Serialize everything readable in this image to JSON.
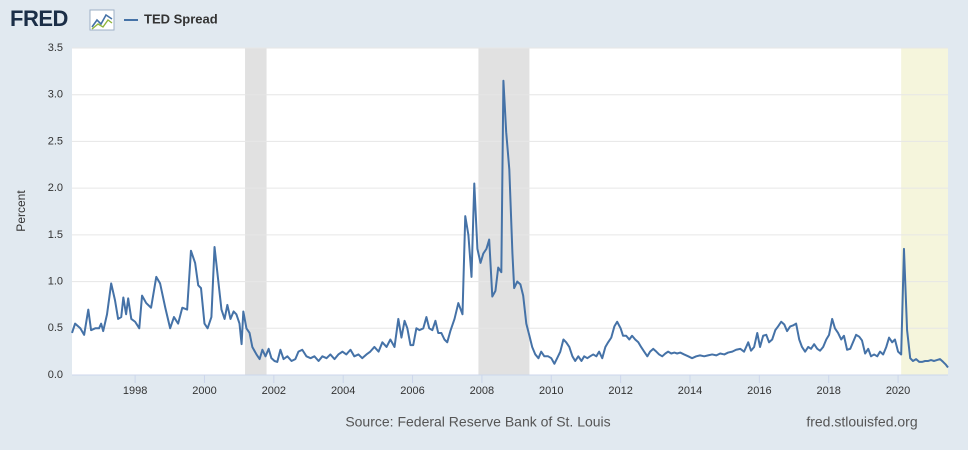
{
  "logo": "FRED",
  "chart_data": {
    "type": "line",
    "y_label": "Percent",
    "source": "Source: Federal Reserve Bank of St. Louis",
    "site": "fred.stlouisfed.org",
    "xlim": [
      1996.18,
      2021.44
    ],
    "xticks": [
      1998,
      2000,
      2002,
      2004,
      2006,
      2008,
      2010,
      2012,
      2014,
      2016,
      2018,
      2020
    ],
    "ylim": [
      0,
      3.5
    ],
    "yticks": [
      {
        "value": 0,
        "label": "0.0"
      },
      0.5,
      {
        "value": 1,
        "label": "1.0"
      },
      1.5,
      {
        "value": 2,
        "label": "2.0"
      },
      2.5,
      {
        "value": 3,
        "label": "3.0"
      },
      3.5
    ],
    "grid": true,
    "legend": "top-left",
    "shaded_regions": [
      {
        "start": 2001.17,
        "end": 2001.79,
        "color": "#e1e1e1"
      },
      {
        "start": 2007.9,
        "end": 2009.37,
        "color": "#e1e1e1"
      },
      {
        "start": 2020.09,
        "end": 2021.44,
        "color": "#f5f5dc"
      }
    ],
    "x": [
      1996.18,
      1996.27,
      1996.42,
      1996.53,
      1996.65,
      1996.73,
      1996.85,
      1996.96,
      1997.02,
      1997.08,
      1997.19,
      1997.31,
      1997.42,
      1997.51,
      1997.6,
      1997.66,
      1997.74,
      1997.8,
      1997.89,
      1998.0,
      1998.12,
      1998.2,
      1998.32,
      1998.46,
      1998.61,
      1998.72,
      1998.87,
      1999.01,
      1999.12,
      1999.24,
      1999.36,
      1999.5,
      1999.61,
      1999.73,
      1999.82,
      1999.9,
      2000.0,
      2000.09,
      2000.2,
      2000.29,
      2000.4,
      2000.49,
      2000.58,
      2000.66,
      2000.75,
      2000.84,
      2000.92,
      2001.01,
      2001.07,
      2001.12,
      2001.21,
      2001.3,
      2001.38,
      2001.5,
      2001.59,
      2001.67,
      2001.76,
      2001.85,
      2001.93,
      2002.02,
      2002.1,
      2002.19,
      2002.28,
      2002.39,
      2002.51,
      2002.62,
      2002.71,
      2002.82,
      2002.94,
      2003.06,
      2003.17,
      2003.29,
      2003.4,
      2003.52,
      2003.63,
      2003.75,
      2003.86,
      2003.98,
      2004.09,
      2004.21,
      2004.32,
      2004.44,
      2004.55,
      2004.67,
      2004.78,
      2004.9,
      2005.02,
      2005.13,
      2005.25,
      2005.36,
      2005.48,
      2005.59,
      2005.68,
      2005.77,
      2005.85,
      2005.94,
      2006.02,
      2006.11,
      2006.2,
      2006.31,
      2006.4,
      2006.48,
      2006.57,
      2006.66,
      2006.74,
      2006.83,
      2006.92,
      2007.0,
      2007.09,
      2007.21,
      2007.32,
      2007.44,
      2007.52,
      2007.61,
      2007.7,
      2007.78,
      2007.87,
      2007.96,
      2008.04,
      2008.13,
      2008.21,
      2008.3,
      2008.39,
      2008.47,
      2008.56,
      2008.62,
      2008.7,
      2008.79,
      2008.88,
      2008.93,
      2009.02,
      2009.11,
      2009.19,
      2009.28,
      2009.37,
      2009.45,
      2009.54,
      2009.63,
      2009.71,
      2009.8,
      2009.91,
      2010.0,
      2010.09,
      2010.17,
      2010.26,
      2010.35,
      2010.43,
      2010.52,
      2010.61,
      2010.69,
      2010.78,
      2010.87,
      2010.95,
      2011.04,
      2011.12,
      2011.21,
      2011.3,
      2011.38,
      2011.47,
      2011.56,
      2011.64,
      2011.73,
      2011.82,
      2011.9,
      2012.0,
      2012.07,
      2012.16,
      2012.25,
      2012.33,
      2012.42,
      2012.51,
      2012.59,
      2012.68,
      2012.77,
      2012.85,
      2012.94,
      2013.03,
      2013.11,
      2013.2,
      2013.29,
      2013.37,
      2013.46,
      2013.55,
      2013.63,
      2013.72,
      2013.83,
      2013.95,
      2014.06,
      2014.18,
      2014.29,
      2014.41,
      2014.52,
      2014.64,
      2014.76,
      2014.87,
      2014.99,
      2015.1,
      2015.22,
      2015.33,
      2015.45,
      2015.56,
      2015.68,
      2015.76,
      2015.85,
      2015.94,
      2016.02,
      2016.11,
      2016.2,
      2016.28,
      2016.37,
      2016.46,
      2016.54,
      2016.63,
      2016.72,
      2016.8,
      2016.89,
      2016.97,
      2017.06,
      2017.15,
      2017.23,
      2017.32,
      2017.41,
      2017.49,
      2017.58,
      2017.67,
      2017.75,
      2017.84,
      2017.93,
      2018.01,
      2018.1,
      2018.18,
      2018.27,
      2018.36,
      2018.44,
      2018.53,
      2018.62,
      2018.7,
      2018.79,
      2018.88,
      2018.96,
      2019.05,
      2019.14,
      2019.22,
      2019.31,
      2019.4,
      2019.48,
      2019.57,
      2019.66,
      2019.74,
      2019.83,
      2019.91,
      2020.0,
      2020.09,
      2020.17,
      2020.26,
      2020.35,
      2020.43,
      2020.52,
      2020.61,
      2020.69,
      2020.78,
      2020.87,
      2020.95,
      2021.04,
      2021.12,
      2021.21,
      2021.3,
      2021.38,
      2021.44
    ],
    "series": [
      {
        "name": "TED Spread",
        "color": "#4572a7",
        "values": [
          0.45,
          0.55,
          0.5,
          0.43,
          0.7,
          0.48,
          0.5,
          0.5,
          0.55,
          0.47,
          0.65,
          0.98,
          0.8,
          0.6,
          0.62,
          0.83,
          0.65,
          0.82,
          0.6,
          0.57,
          0.5,
          0.85,
          0.77,
          0.72,
          1.05,
          0.98,
          0.72,
          0.5,
          0.62,
          0.55,
          0.72,
          0.7,
          1.33,
          1.2,
          0.96,
          0.93,
          0.55,
          0.5,
          0.62,
          1.37,
          1.0,
          0.7,
          0.6,
          0.75,
          0.6,
          0.68,
          0.65,
          0.55,
          0.33,
          0.68,
          0.5,
          0.45,
          0.3,
          0.22,
          0.17,
          0.27,
          0.2,
          0.28,
          0.18,
          0.15,
          0.14,
          0.27,
          0.17,
          0.2,
          0.15,
          0.17,
          0.25,
          0.27,
          0.2,
          0.18,
          0.2,
          0.15,
          0.2,
          0.18,
          0.22,
          0.17,
          0.22,
          0.25,
          0.22,
          0.27,
          0.2,
          0.22,
          0.18,
          0.22,
          0.25,
          0.3,
          0.25,
          0.35,
          0.3,
          0.38,
          0.3,
          0.6,
          0.4,
          0.58,
          0.5,
          0.32,
          0.32,
          0.5,
          0.48,
          0.5,
          0.62,
          0.5,
          0.48,
          0.58,
          0.45,
          0.45,
          0.38,
          0.35,
          0.47,
          0.6,
          0.77,
          0.65,
          1.7,
          1.5,
          1.05,
          2.05,
          1.35,
          1.2,
          1.3,
          1.35,
          1.45,
          0.84,
          0.9,
          1.15,
          1.1,
          3.15,
          2.6,
          2.2,
          1.3,
          0.93,
          1.0,
          0.97,
          0.85,
          0.55,
          0.42,
          0.3,
          0.22,
          0.18,
          0.25,
          0.2,
          0.2,
          0.18,
          0.12,
          0.18,
          0.25,
          0.38,
          0.35,
          0.3,
          0.2,
          0.15,
          0.2,
          0.15,
          0.2,
          0.18,
          0.2,
          0.22,
          0.2,
          0.25,
          0.18,
          0.3,
          0.35,
          0.4,
          0.52,
          0.57,
          0.5,
          0.42,
          0.42,
          0.38,
          0.42,
          0.38,
          0.35,
          0.3,
          0.25,
          0.2,
          0.25,
          0.28,
          0.25,
          0.22,
          0.2,
          0.23,
          0.25,
          0.23,
          0.24,
          0.23,
          0.24,
          0.22,
          0.2,
          0.18,
          0.2,
          0.21,
          0.2,
          0.21,
          0.22,
          0.21,
          0.23,
          0.22,
          0.24,
          0.25,
          0.27,
          0.28,
          0.25,
          0.35,
          0.26,
          0.3,
          0.45,
          0.3,
          0.42,
          0.43,
          0.35,
          0.38,
          0.48,
          0.52,
          0.57,
          0.54,
          0.47,
          0.52,
          0.53,
          0.55,
          0.38,
          0.3,
          0.25,
          0.3,
          0.28,
          0.33,
          0.28,
          0.26,
          0.3,
          0.38,
          0.43,
          0.6,
          0.5,
          0.45,
          0.38,
          0.42,
          0.27,
          0.28,
          0.35,
          0.43,
          0.41,
          0.37,
          0.23,
          0.28,
          0.2,
          0.22,
          0.2,
          0.25,
          0.22,
          0.3,
          0.4,
          0.35,
          0.38,
          0.25,
          0.22,
          1.35,
          0.48,
          0.18,
          0.15,
          0.17,
          0.14,
          0.14,
          0.15,
          0.15,
          0.16,
          0.15,
          0.16,
          0.17,
          0.14,
          0.11,
          0.08
        ]
      }
    ]
  }
}
